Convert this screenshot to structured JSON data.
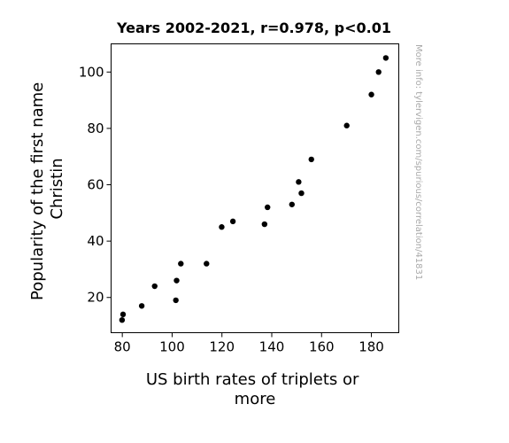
{
  "chart_data": {
    "type": "scatter",
    "title": "Years 2002-2021, r=0.978, p<0.01",
    "xlabel_lines": [
      "US birth rates of triplets or",
      "more"
    ],
    "ylabel_lines": [
      "Popularity of the first name",
      "Christin"
    ],
    "watermark": "More info: tylervigen.com/spurious/correlation/41831",
    "xlim": [
      75.5,
      191
    ],
    "ylim": [
      7.5,
      110
    ],
    "xticks": [
      80,
      100,
      120,
      140,
      160,
      180
    ],
    "yticks": [
      20,
      40,
      60,
      80,
      100
    ],
    "grid": false,
    "point_color": "#000000",
    "points": [
      {
        "x": 79.9,
        "y": 12
      },
      {
        "x": 80.3,
        "y": 14
      },
      {
        "x": 87.8,
        "y": 17
      },
      {
        "x": 93.0,
        "y": 24
      },
      {
        "x": 101.5,
        "y": 19
      },
      {
        "x": 101.8,
        "y": 26
      },
      {
        "x": 103.5,
        "y": 32
      },
      {
        "x": 113.8,
        "y": 32
      },
      {
        "x": 119.9,
        "y": 45
      },
      {
        "x": 124.4,
        "y": 47
      },
      {
        "x": 137.1,
        "y": 46
      },
      {
        "x": 138.3,
        "y": 52
      },
      {
        "x": 148.1,
        "y": 53
      },
      {
        "x": 150.8,
        "y": 61
      },
      {
        "x": 151.9,
        "y": 57
      },
      {
        "x": 155.9,
        "y": 69
      },
      {
        "x": 170.1,
        "y": 81
      },
      {
        "x": 180.0,
        "y": 92
      },
      {
        "x": 182.9,
        "y": 100
      },
      {
        "x": 185.8,
        "y": 105
      }
    ]
  }
}
